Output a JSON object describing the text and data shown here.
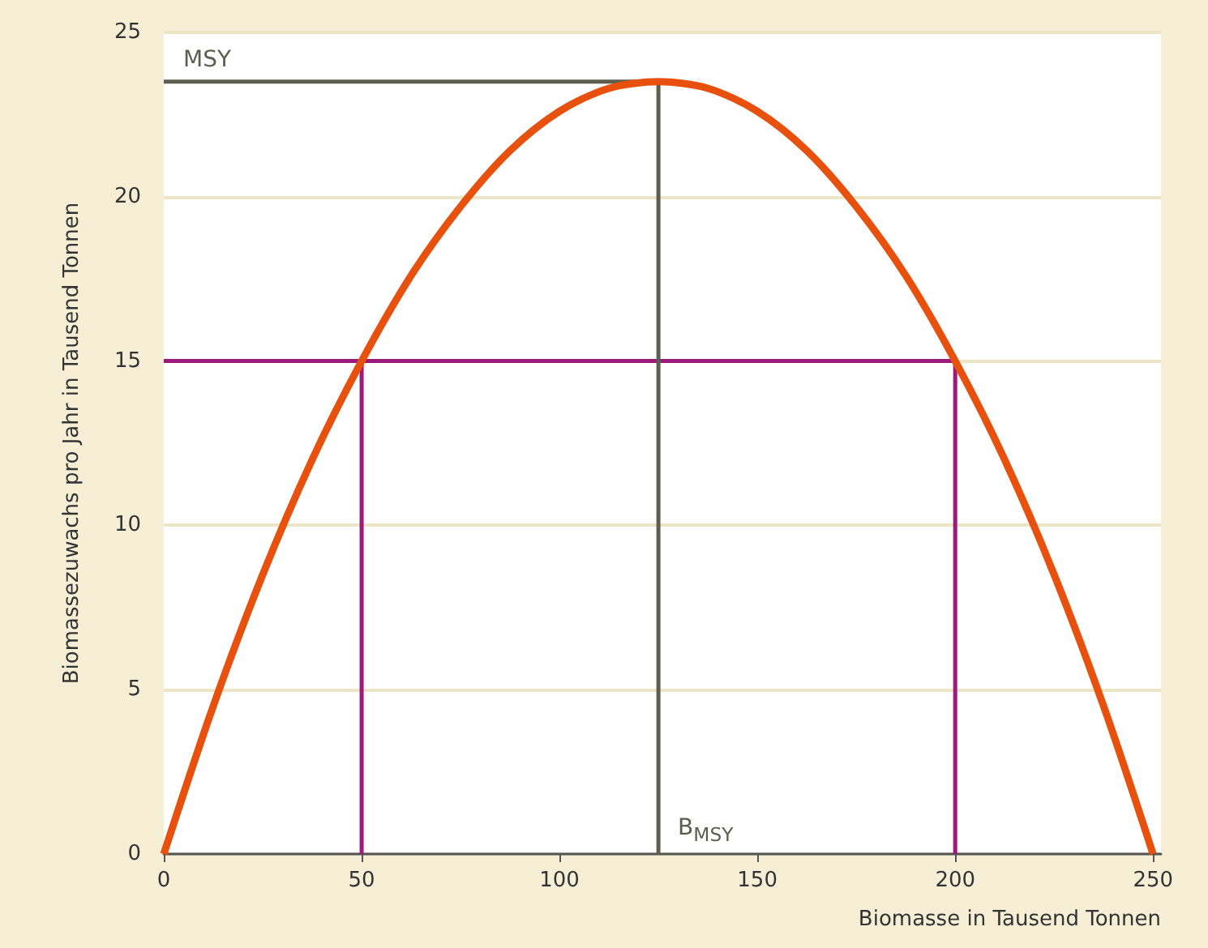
{
  "chart_data": {
    "type": "line",
    "xlabel": "Biomasse in Tausend Tonnen",
    "ylabel": "Biomassezuwachs pro Jahr in Tausend Tonnen",
    "xlim": [
      0,
      252
    ],
    "xticks": [
      0,
      50,
      100,
      150,
      200,
      250
    ],
    "ylim": [
      0,
      25
    ],
    "yticks": [
      0,
      5,
      10,
      15,
      20,
      25
    ],
    "grid": "y",
    "marker": "none",
    "line_style": "solid",
    "series": [
      {
        "color": "#e8500e",
        "x": [
          0,
          12.5,
          25,
          37.5,
          50,
          62.5,
          75,
          87.5,
          100,
          112.5,
          125,
          137.5,
          150,
          162.5,
          175,
          187.5,
          200,
          212.5,
          225,
          237.5,
          250
        ],
        "values": [
          0,
          4.5,
          8.5,
          12,
          15,
          17.6,
          19.7,
          21.4,
          22.6,
          23.3,
          23.5,
          23.3,
          22.6,
          21.4,
          19.7,
          17.6,
          15,
          12,
          8.5,
          4.5,
          0
        ]
      },
      {
        "color": "#9b1b7b",
        "x": [
          0,
          200
        ],
        "values": [
          15,
          15
        ]
      },
      {
        "color": "#9b1b7b",
        "x": [
          50,
          50
        ],
        "values": [
          0,
          15
        ]
      },
      {
        "color": "#9b1b7b",
        "x": [
          200,
          200
        ],
        "values": [
          0,
          15
        ]
      },
      {
        "color": "#5e5e4e",
        "x": [
          0,
          125
        ],
        "values": [
          23.5,
          23.5
        ]
      },
      {
        "color": "#5e5e4e",
        "x": [
          125,
          125
        ],
        "values": [
          0,
          23.5
        ]
      }
    ],
    "annotations": [
      {
        "text": "MSY",
        "x": 0,
        "y": 23.5
      },
      {
        "text": "B$_{MSY}$",
        "x": 125,
        "y": 0
      }
    ]
  }
}
